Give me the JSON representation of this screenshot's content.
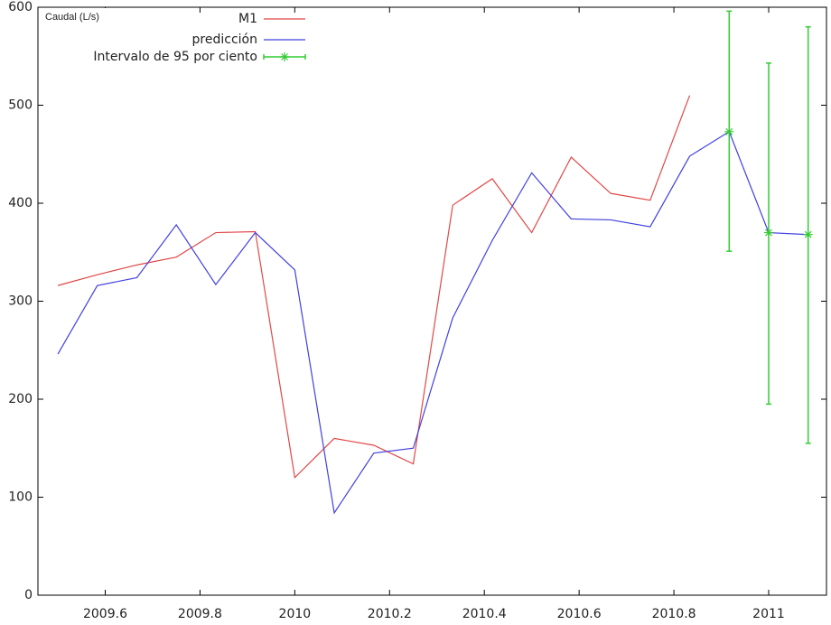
{
  "chart_data": {
    "type": "line",
    "y_label": "Caudal (L/s)",
    "xlim": [
      2009.458,
      2011.122
    ],
    "ylim": [
      0,
      600
    ],
    "xticks": [
      2009.6,
      2009.8,
      2010,
      2010.2,
      2010.4,
      2010.6,
      2010.8,
      2011
    ],
    "yticks": [
      0,
      100,
      200,
      300,
      400,
      500,
      600
    ],
    "series": [
      {
        "name": "M1",
        "color": "#e04848",
        "x": [
          2009.5,
          2009.5833,
          2009.6667,
          2009.75,
          2009.8333,
          2009.9167,
          2010,
          2010.0833,
          2010.1667,
          2010.25,
          2010.3333,
          2010.4167,
          2010.5,
          2010.5833,
          2010.6667,
          2010.75,
          2010.8333
        ],
        "values": [
          316,
          327,
          337,
          345,
          370,
          371,
          120,
          160,
          153,
          134,
          398,
          425,
          370,
          447,
          410,
          403,
          510
        ]
      },
      {
        "name": "predicción",
        "color": "#4040e0",
        "x": [
          2009.5,
          2009.5833,
          2009.6667,
          2009.75,
          2009.8333,
          2009.9167,
          2010,
          2010.0833,
          2010.1667,
          2010.25,
          2010.3333,
          2010.4167,
          2010.5,
          2010.5833,
          2010.6667,
          2010.75,
          2010.8333,
          2010.9167,
          2011,
          2011.0833
        ],
        "values": [
          246,
          316,
          324,
          378,
          317,
          370,
          332,
          84,
          145,
          150,
          283,
          362,
          431,
          384,
          383,
          376,
          448,
          473,
          370,
          368
        ]
      },
      {
        "name": "Intervalo de 95 por ciento",
        "color": "#33cc33",
        "x": [
          2010.9167,
          2011,
          2011.0833
        ],
        "values": [
          473,
          370,
          368
        ],
        "low": [
          351,
          195,
          155
        ],
        "high": [
          596,
          543,
          580
        ]
      }
    ]
  }
}
